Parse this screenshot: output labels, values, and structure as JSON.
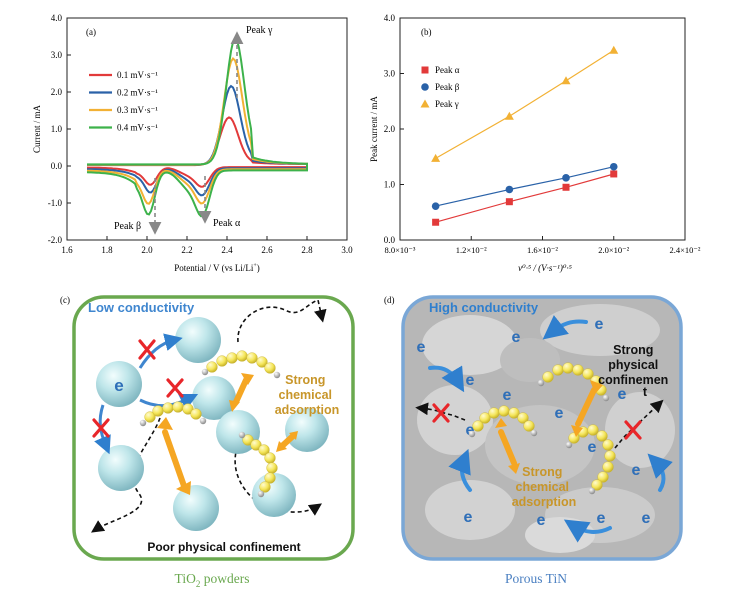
{
  "chart_data": [
    {
      "panel": "(a)",
      "type": "line",
      "xlabel_parts": {
        "main": "Potential / V (vs Li/Li",
        "sup": "+",
        "tail": ")"
      },
      "ylabel": "Current / mA",
      "xlim": [
        1.6,
        3.0
      ],
      "ylim": [
        -2.0,
        4.0
      ],
      "xticks": [
        "1.6",
        "1.8",
        "2.0",
        "2.2",
        "2.4",
        "2.6",
        "2.8",
        "3.0"
      ],
      "yticks": [
        "-2.0",
        "-1.0",
        "0.0",
        "1.0",
        "2.0",
        "3.0",
        "4.0"
      ],
      "legend_position": "center-left",
      "series": [
        {
          "name": "0.1 mV·s⁻¹",
          "color": "#e23a3a",
          "anodic_peak": [
            2.41,
            1.45
          ],
          "cathodic_peaks": [
            [
              2.02,
              -0.42
            ],
            [
              2.28,
              -0.45
            ]
          ]
        },
        {
          "name": "0.2 mV·s⁻¹",
          "color": "#2a62a8",
          "anodic_peak": [
            2.42,
            2.25
          ],
          "cathodic_peaks": [
            [
              2.02,
              -0.58
            ],
            [
              2.28,
              -0.62
            ]
          ]
        },
        {
          "name": "0.3 mV·s⁻¹",
          "color": "#f2b134",
          "anodic_peak": [
            2.43,
            2.95
          ],
          "cathodic_peaks": [
            [
              2.01,
              -0.82
            ],
            [
              2.28,
              -0.78
            ]
          ]
        },
        {
          "name": "0.4 mV·s⁻¹",
          "color": "#3db24b",
          "anodic_peak": [
            2.44,
            3.45
          ],
          "cathodic_peaks": [
            [
              2.01,
              -1.05
            ],
            [
              2.28,
              -1.05
            ]
          ]
        }
      ],
      "annotations": [
        "Peak γ",
        "Peak β",
        "Peak α"
      ]
    },
    {
      "panel": "(b)",
      "type": "scatter",
      "xlabel": "v⁰·⁵ / (V·s⁻¹)⁰·⁵",
      "ylabel": "Peak current / mA",
      "xlim": [
        0.008,
        0.024
      ],
      "ylim": [
        0.0,
        4.0
      ],
      "xticks": [
        "8.0×10⁻³",
        "1.2×10⁻²",
        "1.6×10⁻²",
        "2.0×10⁻²",
        "2.4×10⁻²"
      ],
      "yticks": [
        "0.0",
        "1.0",
        "2.0",
        "3.0",
        "4.0"
      ],
      "x": [
        0.01,
        0.01414,
        0.01732,
        0.02
      ],
      "legend_position": "top-left",
      "series": [
        {
          "name": "Peak α",
          "marker": "square",
          "color": "#e23a3a",
          "values": [
            0.32,
            0.69,
            0.95,
            1.19
          ]
        },
        {
          "name": "Peak β",
          "marker": "circle",
          "color": "#2a62a8",
          "values": [
            0.61,
            0.91,
            1.12,
            1.32
          ]
        },
        {
          "name": "Peak γ",
          "marker": "triangle",
          "color": "#f2b134",
          "values": [
            1.47,
            2.23,
            2.87,
            3.42
          ]
        }
      ]
    }
  ],
  "panel_c": {
    "label": "(c)",
    "title": "Low conductivity",
    "chem": "Strong chemical adsorption",
    "chem_lines": [
      "Strong",
      "chemical",
      "adsorption"
    ],
    "bottom": "Poor physical confinement",
    "electron": "e",
    "caption_main": "TiO",
    "caption_sub": "2",
    "caption_tail": " powders",
    "border_color": "#6aa84f"
  },
  "panel_d": {
    "label": "(d)",
    "title": "High conductivity",
    "physical_lines": [
      "Strong",
      "physical",
      "confinemen",
      "t"
    ],
    "chem_lines": [
      "Strong",
      "chemical",
      "adsorption"
    ],
    "electron": "e",
    "caption": "Porous TiN",
    "border_color": "#7aa7d6"
  }
}
